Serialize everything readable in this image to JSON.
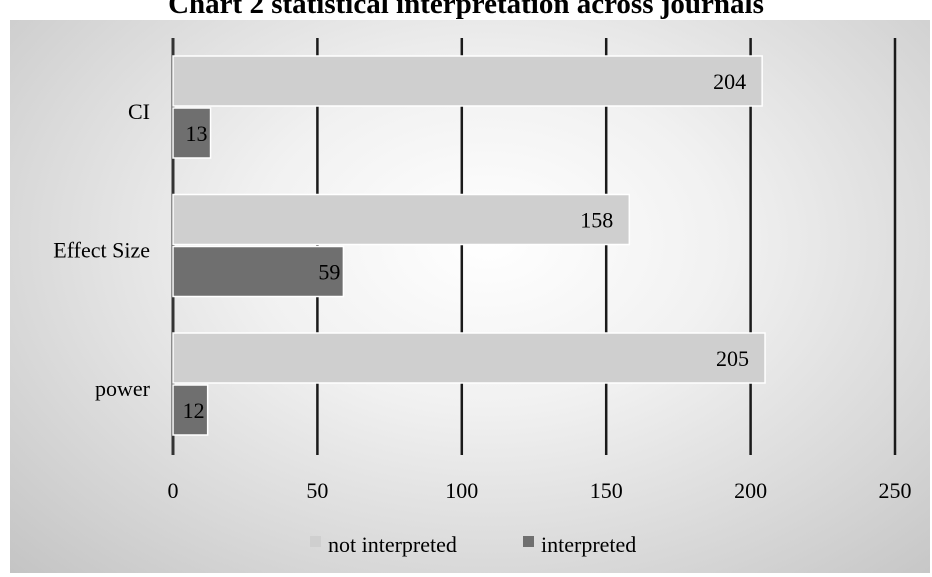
{
  "chart_data": {
    "type": "bar",
    "orientation": "horizontal",
    "title": "Chart 2 statistical interpretation across journals",
    "categories": [
      "CI",
      "Effect Size",
      "power"
    ],
    "series": [
      {
        "name": "not interpreted",
        "values": [
          204,
          158,
          205
        ],
        "color": "#cfcfcf"
      },
      {
        "name": "interpreted",
        "values": [
          13,
          59,
          12
        ],
        "color": "#6f6f6f"
      }
    ],
    "xlim": [
      0,
      250
    ],
    "xticks": [
      0,
      50,
      100,
      150,
      200,
      250
    ],
    "xlabel": "",
    "ylabel": "",
    "grid": true,
    "legend_position": "bottom"
  }
}
